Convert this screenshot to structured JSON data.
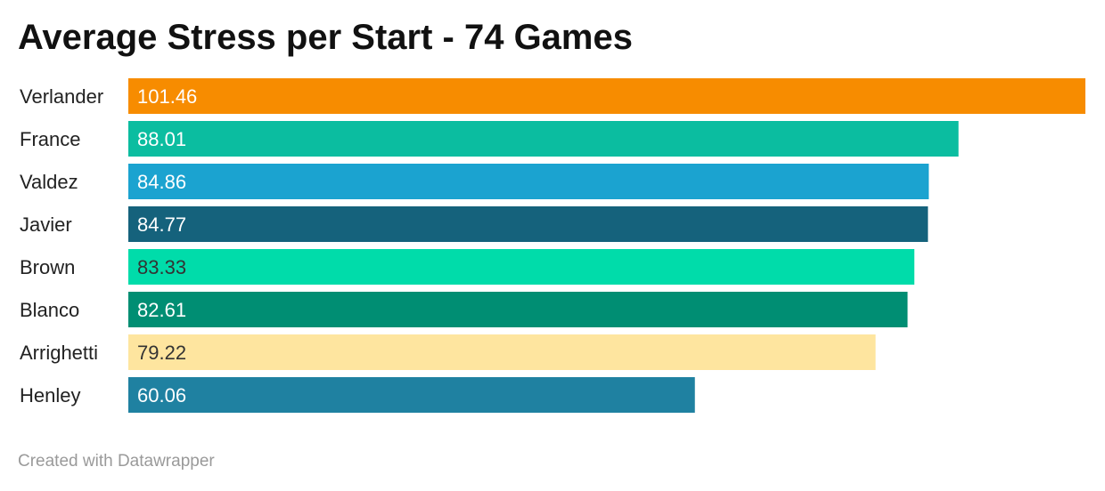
{
  "chart_data": {
    "type": "bar",
    "orientation": "horizontal",
    "title": "Average Stress per Start - 74 Games",
    "categories": [
      "Verlander",
      "France",
      "Valdez",
      "Javier",
      "Brown",
      "Blanco",
      "Arrighetti",
      "Henley"
    ],
    "values": [
      101.46,
      88.01,
      84.86,
      84.77,
      83.33,
      82.61,
      79.22,
      60.06
    ],
    "value_labels": [
      "101.46",
      "88.01",
      "84.86",
      "84.77",
      "83.33",
      "82.61",
      "79.22",
      "60.06"
    ],
    "colors": [
      "#f78c00",
      "#0bbda0",
      "#1ba3d0",
      "#15627c",
      "#00dcaa",
      "#008e73",
      "#fee59f",
      "#1f81a1"
    ],
    "label_colors": [
      "#ffffff",
      "#ffffff",
      "#ffffff",
      "#ffffff",
      "#333333",
      "#ffffff",
      "#333333",
      "#ffffff"
    ],
    "xlim": [
      0,
      101.46
    ],
    "grid": false,
    "legend": "none"
  },
  "footer": {
    "credit": "Created with Datawrapper"
  }
}
